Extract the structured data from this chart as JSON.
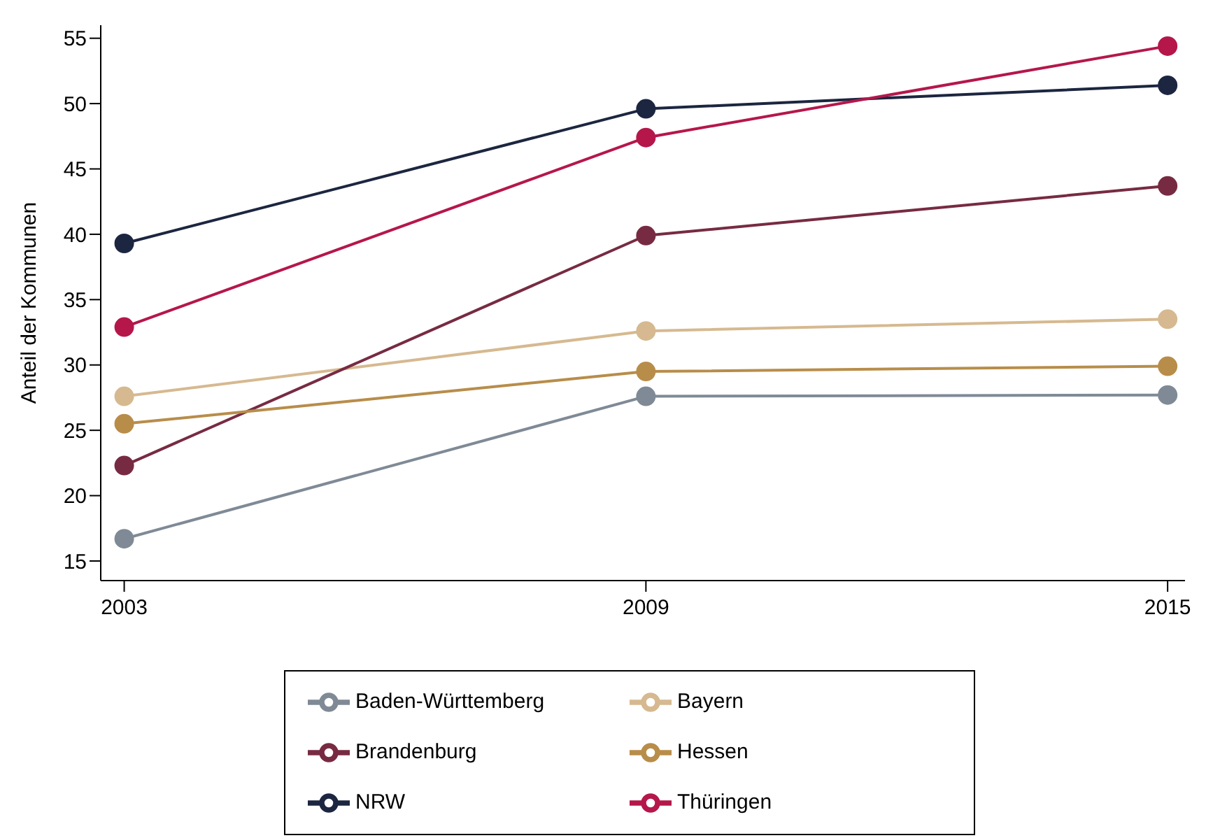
{
  "chart_data": {
    "type": "line",
    "ylabel": "Anteil der Kommunen",
    "x": [
      2003,
      2009,
      2015
    ],
    "xlim": [
      2002.73,
      2015.2
    ],
    "xticks": [
      2003,
      2009,
      2015
    ],
    "ylim": [
      13.5,
      56
    ],
    "yticks": [
      15,
      20,
      25,
      30,
      35,
      40,
      45,
      50,
      55
    ],
    "grid": false,
    "legend": "bottom",
    "marker": "circle",
    "line_style": "solid",
    "series": [
      {
        "name": "Bayern",
        "color": "#d6b990",
        "values": [
          27.6,
          32.6,
          33.5
        ]
      },
      {
        "name": "Baden-Württemberg",
        "color": "#7f8a96",
        "values": [
          16.7,
          27.6,
          27.7
        ]
      },
      {
        "name": "Brandenburg",
        "color": "#772b42",
        "values": [
          22.3,
          39.9,
          43.7
        ]
      },
      {
        "name": "Hessen",
        "color": "#b88d4a",
        "values": [
          25.5,
          29.5,
          29.9
        ]
      },
      {
        "name": "NRW",
        "color": "#1c2640",
        "values": [
          39.3,
          49.6,
          51.4
        ]
      },
      {
        "name": "Thüringen",
        "color": "#b5174b",
        "values": [
          32.9,
          47.4,
          54.4
        ]
      }
    ]
  }
}
